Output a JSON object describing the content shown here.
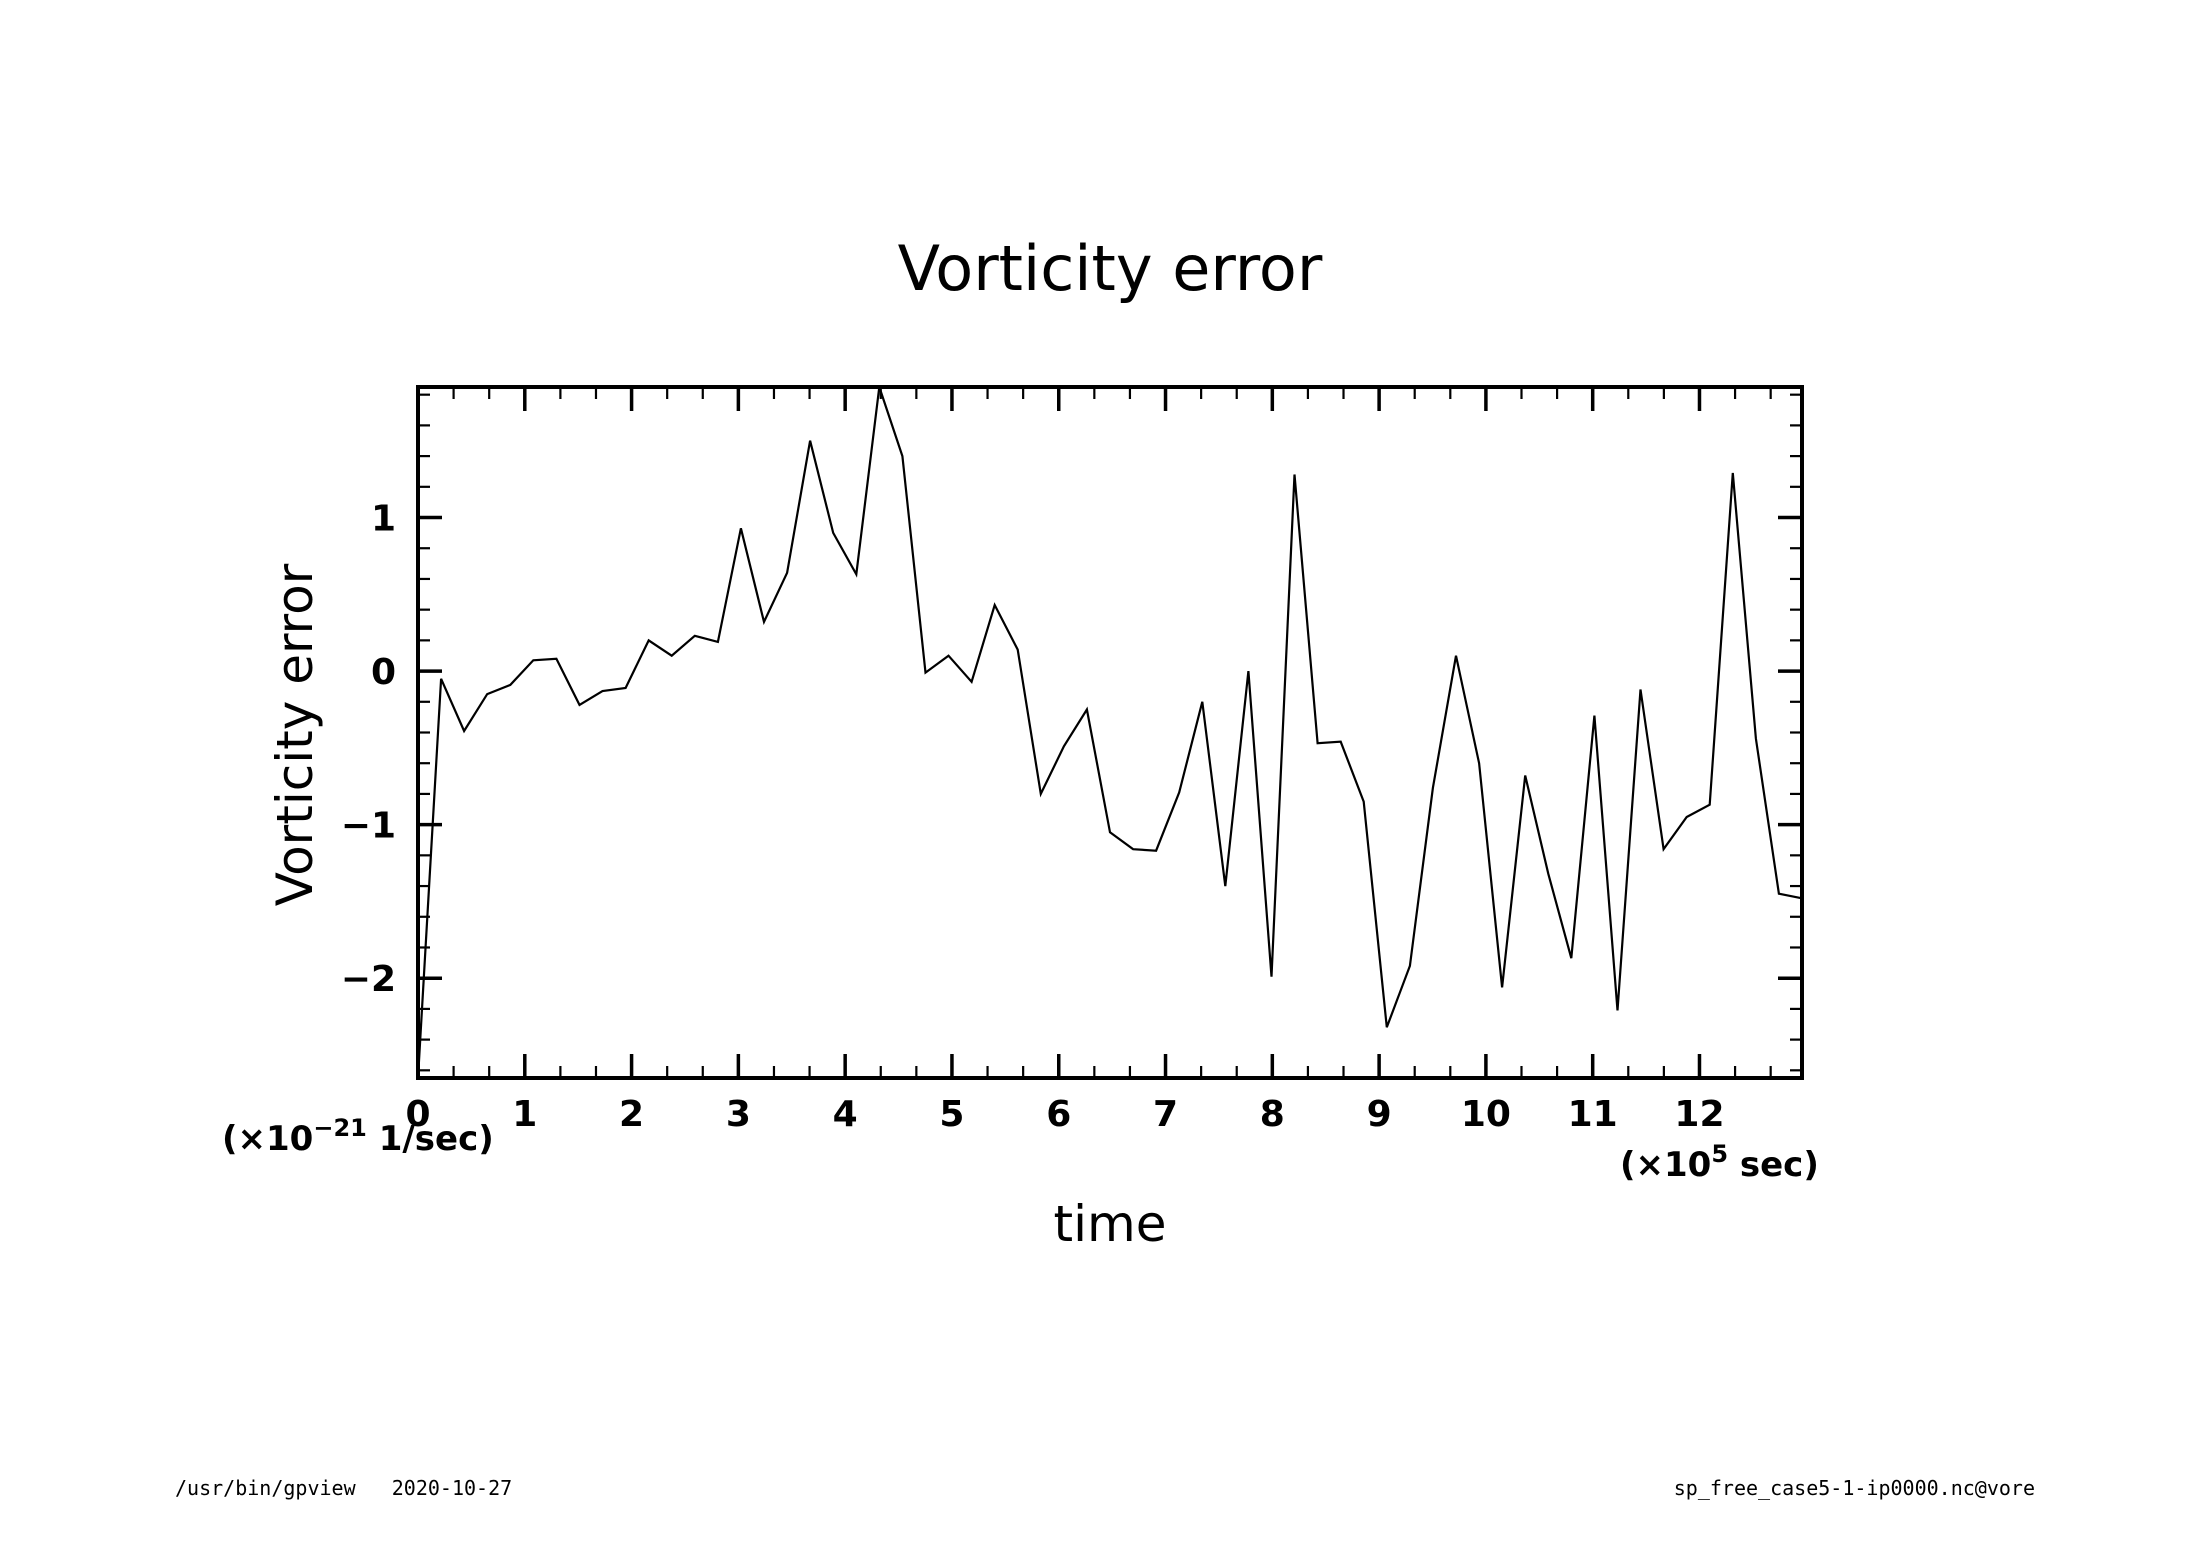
{
  "chart_data": {
    "type": "line",
    "title": "Vorticity error",
    "xlabel": "time",
    "ylabel": "Vorticity error",
    "x_unit": {
      "prefix": "(×10",
      "exp": "5",
      "suffix": " sec)"
    },
    "y_unit": {
      "prefix": "(×10",
      "exp": "−21",
      "suffix": " 1/sec)"
    },
    "xlim": [
      0,
      12.96
    ],
    "ylim": [
      -2.65,
      1.85
    ],
    "x_ticks": [
      0,
      1,
      2,
      3,
      4,
      5,
      6,
      7,
      8,
      9,
      10,
      11,
      12
    ],
    "x_tick_labels": [
      "0",
      "1",
      "2",
      "3",
      "4",
      "5",
      "6",
      "7",
      "8",
      "9",
      "10",
      "11",
      "12"
    ],
    "y_ticks": [
      -2,
      -1,
      0,
      1
    ],
    "y_tick_labels": [
      "−2",
      "−1",
      "0",
      "1"
    ],
    "grid": false,
    "series": [
      {
        "x": [
          0.0,
          0.216,
          0.432,
          0.648,
          0.864,
          1.08,
          1.296,
          1.512,
          1.728,
          1.944,
          2.16,
          2.376,
          2.592,
          2.808,
          3.024,
          3.24,
          3.456,
          3.672,
          3.888,
          4.104,
          4.32,
          4.536,
          4.752,
          4.968,
          5.184,
          5.4,
          5.616,
          5.832,
          6.048,
          6.264,
          6.48,
          6.696,
          6.912,
          7.128,
          7.344,
          7.56,
          7.776,
          7.992,
          8.208,
          8.424,
          8.64,
          8.856,
          9.072,
          9.288,
          9.504,
          9.72,
          9.936,
          10.152,
          10.368,
          10.584,
          10.8,
          11.016,
          11.232,
          11.448,
          11.664,
          11.88,
          12.096,
          12.312,
          12.528,
          12.744,
          12.96
        ],
        "y": [
          -2.65,
          -0.05,
          -0.39,
          -0.15,
          -0.09,
          0.07,
          0.08,
          -0.22,
          -0.13,
          -0.11,
          0.2,
          0.1,
          0.23,
          0.19,
          0.93,
          0.32,
          0.64,
          1.5,
          0.9,
          0.63,
          1.85,
          1.4,
          -0.01,
          0.1,
          -0.07,
          0.43,
          0.14,
          -0.8,
          -0.49,
          -0.25,
          -1.05,
          -1.16,
          -1.17,
          -0.79,
          -0.2,
          -1.4,
          0.0,
          -1.99,
          1.28,
          -0.47,
          -0.46,
          -0.85,
          -2.32,
          -1.92,
          -0.76,
          0.1,
          -0.6,
          -2.06,
          -0.68,
          -1.32,
          -1.87,
          -0.29,
          -2.21,
          -0.12,
          -1.16,
          -0.95,
          -0.87,
          1.29,
          -0.44,
          -1.45,
          -1.48
        ]
      }
    ]
  },
  "footer": {
    "left": "/usr/bin/gpview   2020-10-27",
    "right": "sp_free_case5-1-ip0000.nc@vore"
  }
}
